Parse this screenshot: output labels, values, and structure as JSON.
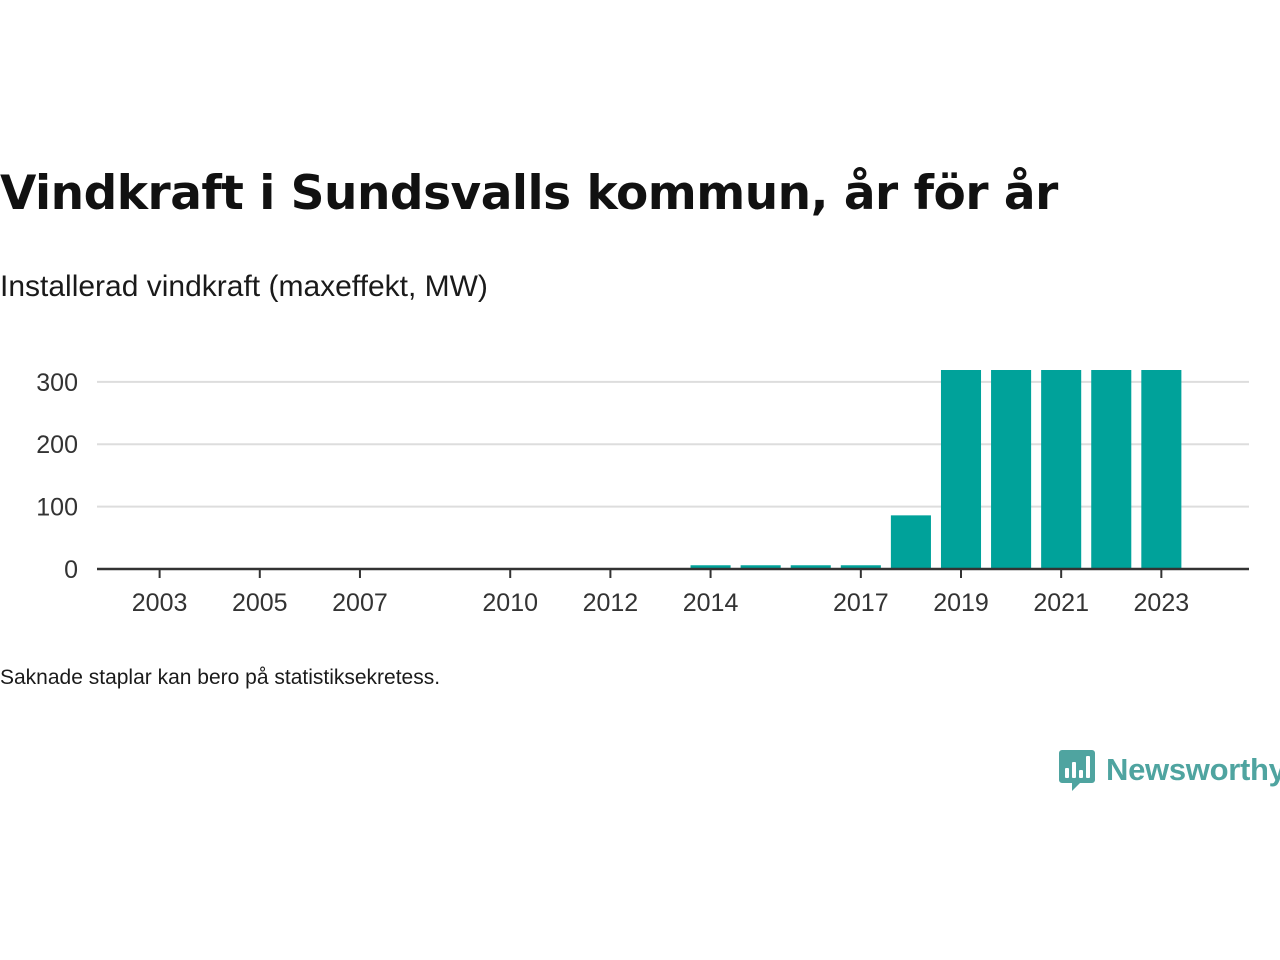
{
  "chart_data": {
    "type": "bar",
    "title": "Vindkraft i Sundsvalls kommun, år för år",
    "subtitle": "Installerad vindkraft (maxeffekt, MW)",
    "x": [
      2003,
      2005,
      2007,
      2010,
      2012,
      2014,
      2015,
      2016,
      2017,
      2018,
      2019,
      2020,
      2021,
      2022,
      2023
    ],
    "values": [
      0,
      0,
      0,
      0,
      0,
      6,
      6,
      6,
      6,
      86,
      319,
      319,
      319,
      319,
      319
    ],
    "xlim": [
      2001.75,
      2024.75
    ],
    "x_tick_labels": [
      "2003",
      "2005",
      "2007",
      "2010",
      "2012",
      "2014",
      "2017",
      "2019",
      "2021",
      "2023"
    ],
    "ylim": [
      0,
      319
    ],
    "y_ticks": [
      0,
      100,
      200,
      300
    ],
    "grid": true,
    "bar_color": "#00a29a"
  },
  "footnote": "Saknade staplar kan bero på statistiksekretess.",
  "brand": "Newsworthy",
  "brand_color": "#4fa4a0"
}
